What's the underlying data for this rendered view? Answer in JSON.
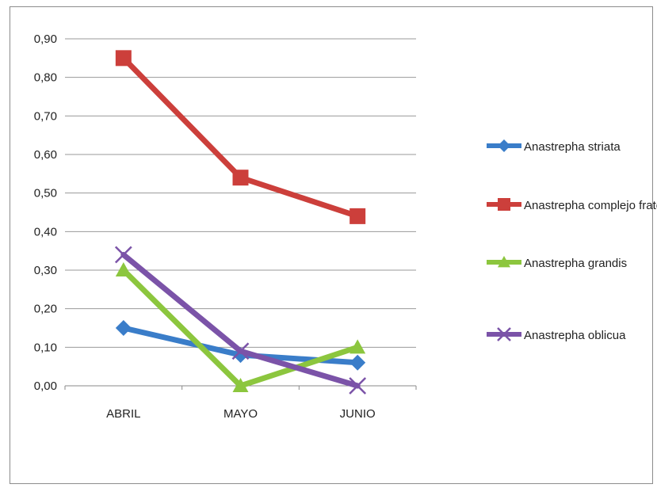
{
  "chart_data": {
    "type": "line",
    "categories": [
      "ABRIL",
      "MAYO",
      "JUNIO"
    ],
    "ylim": [
      0,
      0.9
    ],
    "yticks": [
      "0,00",
      "0,10",
      "0,20",
      "0,30",
      "0,40",
      "0,50",
      "0,60",
      "0,70",
      "0,80",
      "0,90"
    ],
    "grid": true,
    "legend_position": "right",
    "series": [
      {
        "name": "Anastrepha striata",
        "values": [
          0.15,
          0.08,
          0.06
        ],
        "color": "#3a7dc9",
        "marker": "diamond"
      },
      {
        "name": "Anastrepha complejo fraterculus",
        "values": [
          0.85,
          0.54,
          0.44
        ],
        "color": "#cc3f3b",
        "marker": "square"
      },
      {
        "name": "Anastrepha grandis",
        "values": [
          0.3,
          0.0,
          0.1
        ],
        "color": "#8cc63e",
        "marker": "triangle"
      },
      {
        "name": "Anastrepha oblicua",
        "values": [
          0.34,
          0.09,
          0.0
        ],
        "color": "#7b53a8",
        "marker": "x"
      }
    ]
  }
}
